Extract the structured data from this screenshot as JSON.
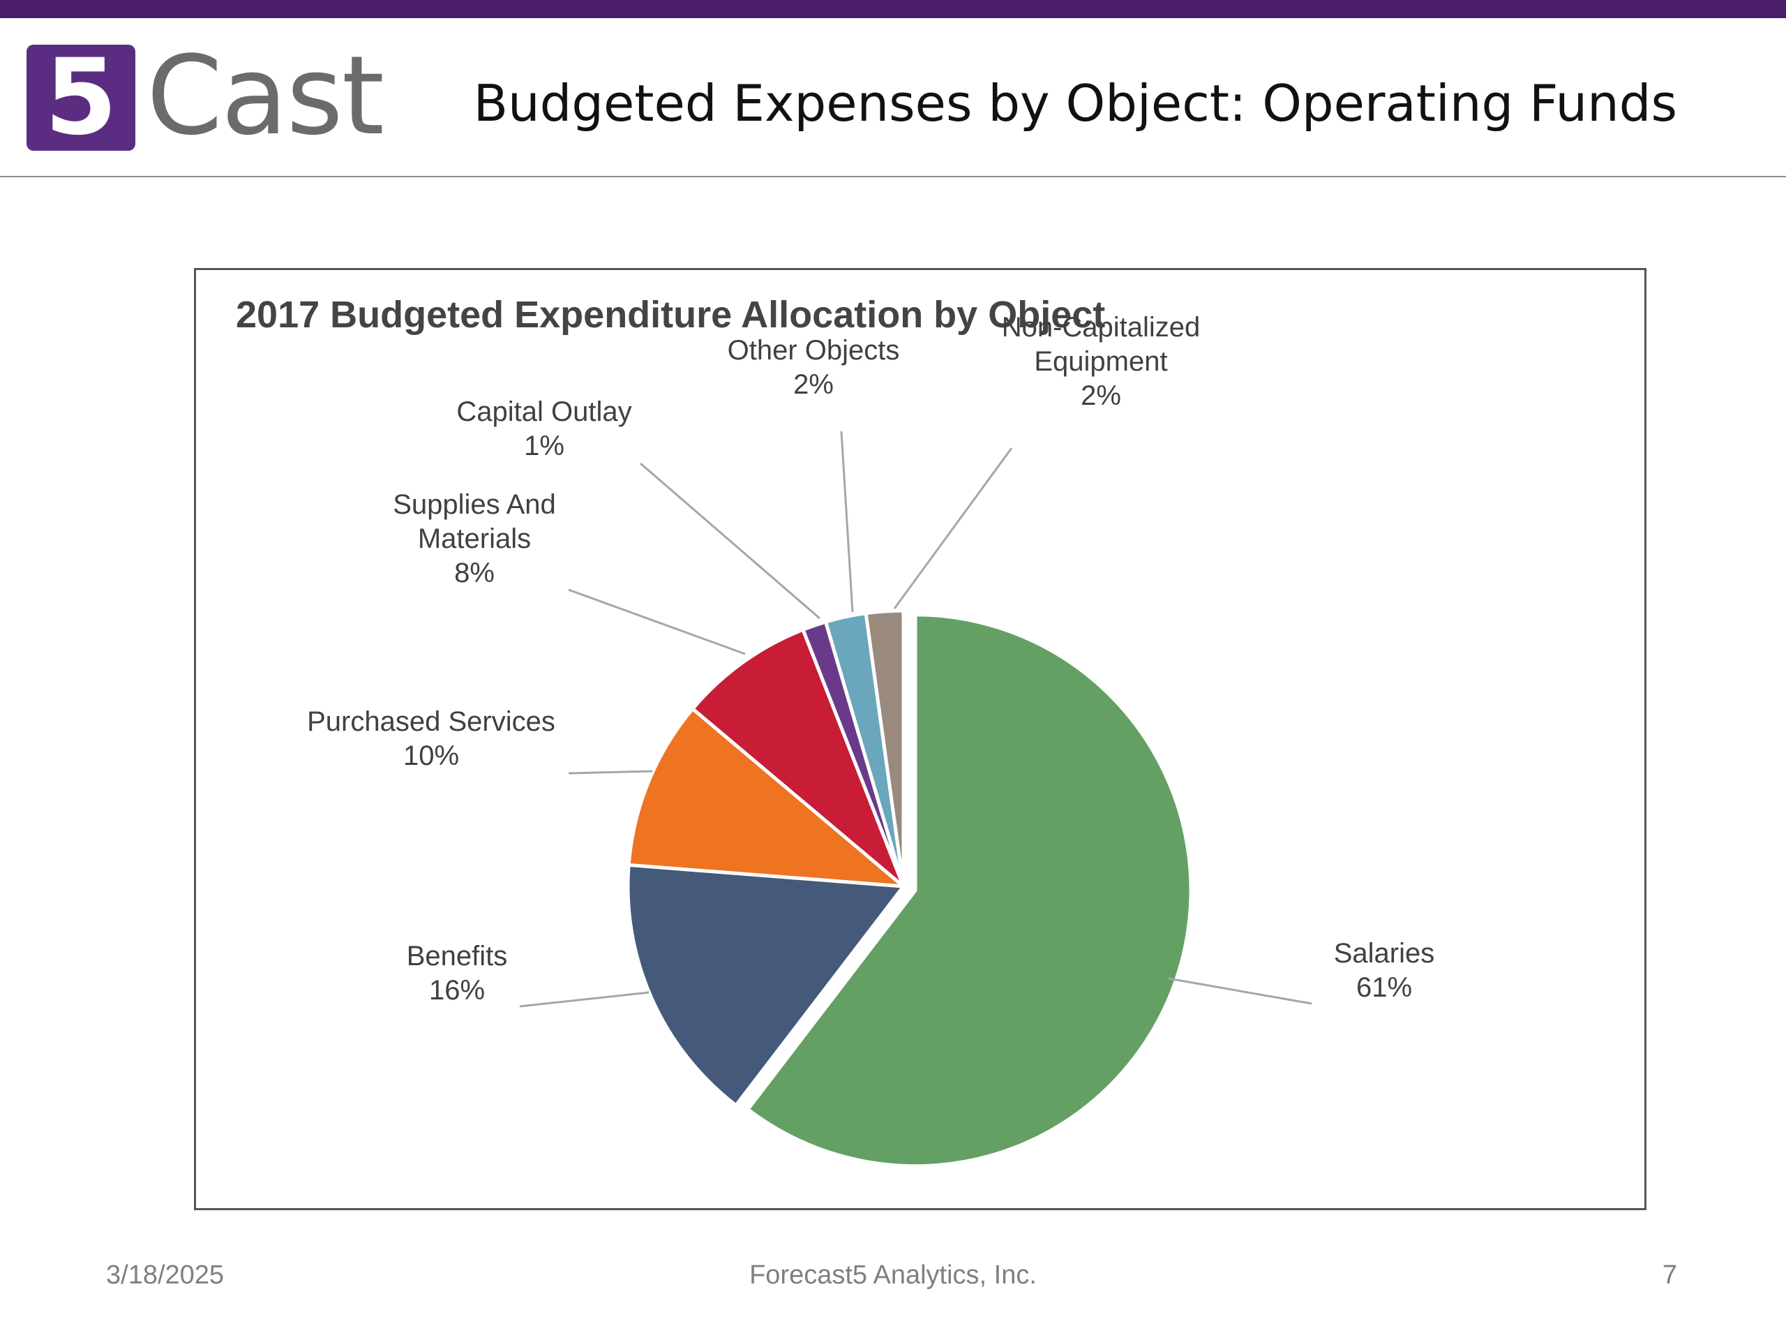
{
  "header": {
    "logo": {
      "mark": "5",
      "text": "Cast"
    },
    "title": "Budgeted Expenses by Object: Operating Funds"
  },
  "chart_data": {
    "type": "pie",
    "title": "2017 Budgeted Expenditure Allocation by Object",
    "legend": "none",
    "slices": [
      {
        "name": "Salaries",
        "label_lines": [
          "Salaries"
        ],
        "percent_label": "61%",
        "value": 61,
        "color": "#64a064",
        "exploded": true
      },
      {
        "name": "Benefits",
        "label_lines": [
          "Benefits"
        ],
        "percent_label": "16%",
        "value": 16,
        "color": "#455a7a",
        "exploded": false
      },
      {
        "name": "Purchased Services",
        "label_lines": [
          "Purchased Services"
        ],
        "percent_label": "10%",
        "value": 10,
        "color": "#ee7421",
        "exploded": false
      },
      {
        "name": "Supplies And Materials",
        "label_lines": [
          "Supplies And",
          "Materials"
        ],
        "percent_label": "8%",
        "value": 8,
        "color": "#c81c37",
        "exploded": false
      },
      {
        "name": "Capital Outlay",
        "label_lines": [
          "Capital Outlay"
        ],
        "percent_label": "1%",
        "value": 1.4,
        "color": "#6a3a8a",
        "exploded": false
      },
      {
        "name": "Other Objects",
        "label_lines": [
          "Other Objects"
        ],
        "percent_label": "2%",
        "value": 2.4,
        "color": "#6aa6bc",
        "exploded": false
      },
      {
        "name": "Non-Capitalized Equipment",
        "label_lines": [
          "Non-Capitalized",
          "Equipment"
        ],
        "percent_label": "2%",
        "value": 2.2,
        "color": "#9a8a7e",
        "exploded": false
      }
    ]
  },
  "footer": {
    "date": "3/18/2025",
    "company": "Forecast5 Analytics, Inc.",
    "page": "7"
  }
}
